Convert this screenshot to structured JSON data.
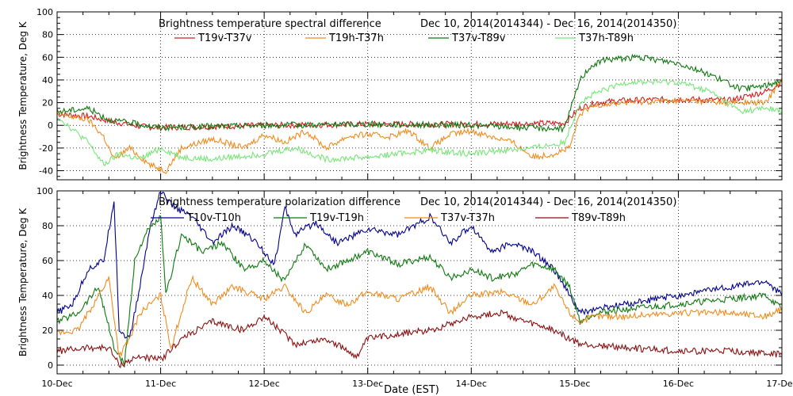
{
  "chart_data": [
    {
      "type": "line",
      "title": "Brightness temperature spectral difference",
      "date_range": "Dec 10, 2014(2014344) - Dec 16, 2014(2014350)",
      "ylabel": "Brightness Temperature, Deg K",
      "xlabel": "",
      "xlim": [
        0,
        7
      ],
      "ylim": [
        -48,
        100
      ],
      "yticks": [
        -40,
        -20,
        0,
        20,
        40,
        60,
        80,
        100
      ],
      "grid": true,
      "legend_position": "top",
      "series": [
        {
          "name": "T19v-T37v",
          "color": "#d21e1e",
          "x": [
            0,
            0.3,
            0.5,
            0.8,
            1.0,
            1.5,
            2.0,
            3.0,
            4.0,
            4.9,
            5.05,
            5.2,
            5.5,
            6.0,
            6.5,
            6.85,
            7.0
          ],
          "y": [
            10,
            8,
            4,
            -1,
            -2,
            -1,
            0,
            1,
            1,
            2,
            15,
            20,
            22,
            23,
            22,
            30,
            38
          ]
        },
        {
          "name": "T19h-T37h",
          "color": "#f08c1e",
          "x": [
            0,
            0.3,
            0.45,
            0.55,
            0.7,
            0.9,
            1.05,
            1.2,
            1.5,
            1.8,
            2.0,
            2.2,
            2.4,
            2.6,
            2.8,
            3.0,
            3.2,
            3.4,
            3.6,
            3.8,
            4.0,
            4.2,
            4.4,
            4.6,
            4.8,
            4.95,
            5.05,
            5.2,
            5.5,
            6.0,
            6.5,
            6.85,
            7.0
          ],
          "y": [
            10,
            5,
            -10,
            -30,
            -20,
            -35,
            -40,
            -20,
            -12,
            -20,
            -8,
            -15,
            -5,
            -20,
            -10,
            -8,
            -10,
            -5,
            -20,
            -8,
            -5,
            -10,
            -15,
            -28,
            -25,
            -20,
            10,
            18,
            20,
            22,
            20,
            20,
            42
          ]
        },
        {
          "name": "T37v-T89v",
          "color": "#0f780f",
          "x": [
            0,
            0.3,
            0.5,
            1.0,
            2.0,
            3.0,
            4.0,
            4.5,
            4.9,
            5.05,
            5.15,
            5.3,
            5.6,
            6.0,
            6.3,
            6.6,
            6.85,
            7.0
          ],
          "y": [
            12,
            15,
            5,
            -2,
            0,
            1,
            0,
            -2,
            -3,
            40,
            52,
            58,
            60,
            55,
            45,
            32,
            35,
            40
          ]
        },
        {
          "name": "T37h-T89h",
          "color": "#78e678",
          "x": [
            0,
            0.3,
            0.45,
            0.6,
            0.8,
            1.0,
            1.2,
            1.5,
            2.0,
            2.3,
            2.6,
            3.0,
            3.3,
            3.6,
            4.0,
            4.3,
            4.6,
            4.9,
            5.05,
            5.2,
            5.5,
            6.0,
            6.3,
            6.6,
            6.85,
            7.0
          ],
          "y": [
            8,
            -15,
            -35,
            -25,
            -30,
            -20,
            -28,
            -30,
            -25,
            -20,
            -30,
            -28,
            -25,
            -22,
            -25,
            -22,
            -20,
            -15,
            20,
            28,
            38,
            38,
            30,
            12,
            15,
            12
          ]
        }
      ]
    },
    {
      "type": "line",
      "title": "Brightness temperature polarization difference",
      "date_range": "Dec 10, 2014(2014344) - Dec 16, 2014(2014350)",
      "ylabel": "Brightness Temperature, Deg K",
      "xlabel": "Date (EST)",
      "xlim": [
        0,
        7
      ],
      "ylim": [
        -5,
        100
      ],
      "yticks": [
        0,
        20,
        40,
        60,
        80,
        100
      ],
      "xtick_labels": [
        "10-Dec",
        "11-Dec",
        "12-Dec",
        "13-Dec",
        "14-Dec",
        "15-Dec",
        "16-Dec",
        "17-Dec"
      ],
      "grid": true,
      "legend_position": "top",
      "series": [
        {
          "name": "T10v-T10h",
          "color": "#00008c",
          "x": [
            0,
            0.15,
            0.3,
            0.45,
            0.55,
            0.6,
            0.7,
            0.8,
            0.9,
            1.0,
            1.1,
            1.3,
            1.5,
            1.7,
            1.9,
            2.1,
            2.2,
            2.3,
            2.5,
            2.7,
            3.0,
            3.3,
            3.6,
            3.8,
            4.0,
            4.2,
            4.4,
            4.6,
            4.8,
            4.95,
            5.05,
            5.2,
            5.5,
            6.0,
            6.5,
            6.85,
            7.0
          ],
          "y": [
            30,
            35,
            55,
            60,
            95,
            20,
            15,
            45,
            80,
            100,
            92,
            85,
            70,
            80,
            72,
            58,
            90,
            75,
            82,
            70,
            78,
            75,
            85,
            70,
            80,
            65,
            70,
            65,
            55,
            40,
            30,
            32,
            35,
            40,
            45,
            48,
            40
          ]
        },
        {
          "name": "T19v-T19h",
          "color": "#0f780f",
          "x": [
            0,
            0.2,
            0.4,
            0.55,
            0.65,
            0.75,
            0.85,
            1.0,
            1.05,
            1.2,
            1.4,
            1.6,
            1.8,
            2.0,
            2.2,
            2.4,
            2.6,
            2.8,
            3.0,
            3.3,
            3.6,
            3.8,
            4.0,
            4.2,
            4.4,
            4.6,
            4.8,
            4.95,
            5.05,
            5.2,
            5.5,
            6.0,
            6.5,
            6.85,
            7.0
          ],
          "y": [
            25,
            30,
            45,
            10,
            0,
            60,
            75,
            85,
            40,
            75,
            65,
            70,
            55,
            60,
            48,
            70,
            55,
            60,
            65,
            58,
            62,
            50,
            55,
            50,
            52,
            58,
            55,
            45,
            25,
            30,
            32,
            35,
            38,
            40,
            32
          ]
        },
        {
          "name": "T37v-T37h",
          "color": "#f08c1e",
          "x": [
            0,
            0.2,
            0.4,
            0.5,
            0.6,
            0.7,
            0.8,
            1.0,
            1.1,
            1.3,
            1.5,
            1.7,
            2.0,
            2.2,
            2.4,
            2.6,
            2.8,
            3.0,
            3.3,
            3.6,
            3.8,
            4.0,
            4.3,
            4.6,
            4.8,
            4.95,
            5.05,
            5.2,
            5.5,
            6.0,
            6.5,
            6.85,
            7.0
          ],
          "y": [
            18,
            20,
            40,
            50,
            5,
            15,
            30,
            40,
            10,
            50,
            35,
            45,
            38,
            45,
            30,
            40,
            35,
            42,
            38,
            45,
            30,
            40,
            42,
            35,
            45,
            30,
            25,
            28,
            28,
            30,
            30,
            28,
            32
          ]
        },
        {
          "name": "T89v-T89h",
          "color": "#8c0f0f",
          "x": [
            0,
            0.3,
            0.5,
            0.6,
            0.8,
            1.0,
            1.2,
            1.5,
            1.8,
            2.0,
            2.3,
            2.6,
            2.9,
            3.0,
            3.3,
            3.6,
            4.0,
            4.3,
            4.5,
            4.8,
            4.95,
            5.05,
            5.5,
            6.0,
            6.5,
            7.0
          ],
          "y": [
            8,
            10,
            10,
            0,
            5,
            3,
            15,
            25,
            20,
            28,
            12,
            15,
            5,
            15,
            18,
            20,
            28,
            30,
            25,
            20,
            15,
            12,
            10,
            8,
            8,
            6
          ]
        }
      ]
    }
  ]
}
